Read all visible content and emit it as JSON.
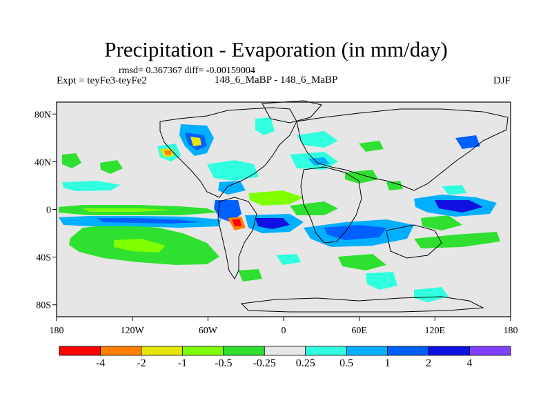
{
  "figure": {
    "title": "Precipitation - Evaporation (in mm/day)",
    "stats": "rmsd= 0.367367 diff= -0.00159004",
    "experiment": "Expt = teyFe3-teyFe2",
    "runs": "148_6_MaBP - 148_6_MaBP",
    "season": "DJF"
  },
  "axes": {
    "lat_ticks": [
      "80N",
      "40N",
      "0",
      "40S",
      "80S"
    ],
    "lon_ticks": [
      "180",
      "120W",
      "60W",
      "0",
      "60E",
      "120E",
      "180"
    ],
    "lat_values": [
      80,
      40,
      0,
      -40,
      -80
    ],
    "lon_values": [
      -180,
      -120,
      -60,
      0,
      60,
      120,
      180
    ]
  },
  "colorbar": {
    "labels": [
      "-4",
      "-2",
      "-1",
      "-0.5",
      "-0.25",
      "0.25",
      "0.5",
      "1",
      "2",
      "4"
    ],
    "colors": [
      "#ff0000",
      "#ff8000",
      "#e6e600",
      "#80ff00",
      "#30e030",
      "#e6e6e6",
      "#30ffe0",
      "#00b0ff",
      "#0060ff",
      "#1010e0",
      "#8040ff"
    ]
  },
  "map_colors": {
    "background": "#e6e6e6",
    "coast": "#000000",
    "green": "#30e030",
    "lightgreen": "#80ff00",
    "yellow": "#e6e600",
    "orange": "#ff8000",
    "red": "#ff0000",
    "cyan": "#30ffe0",
    "skyblue": "#00b0ff",
    "blue": "#0060ff",
    "darkblue": "#1010e0"
  }
}
